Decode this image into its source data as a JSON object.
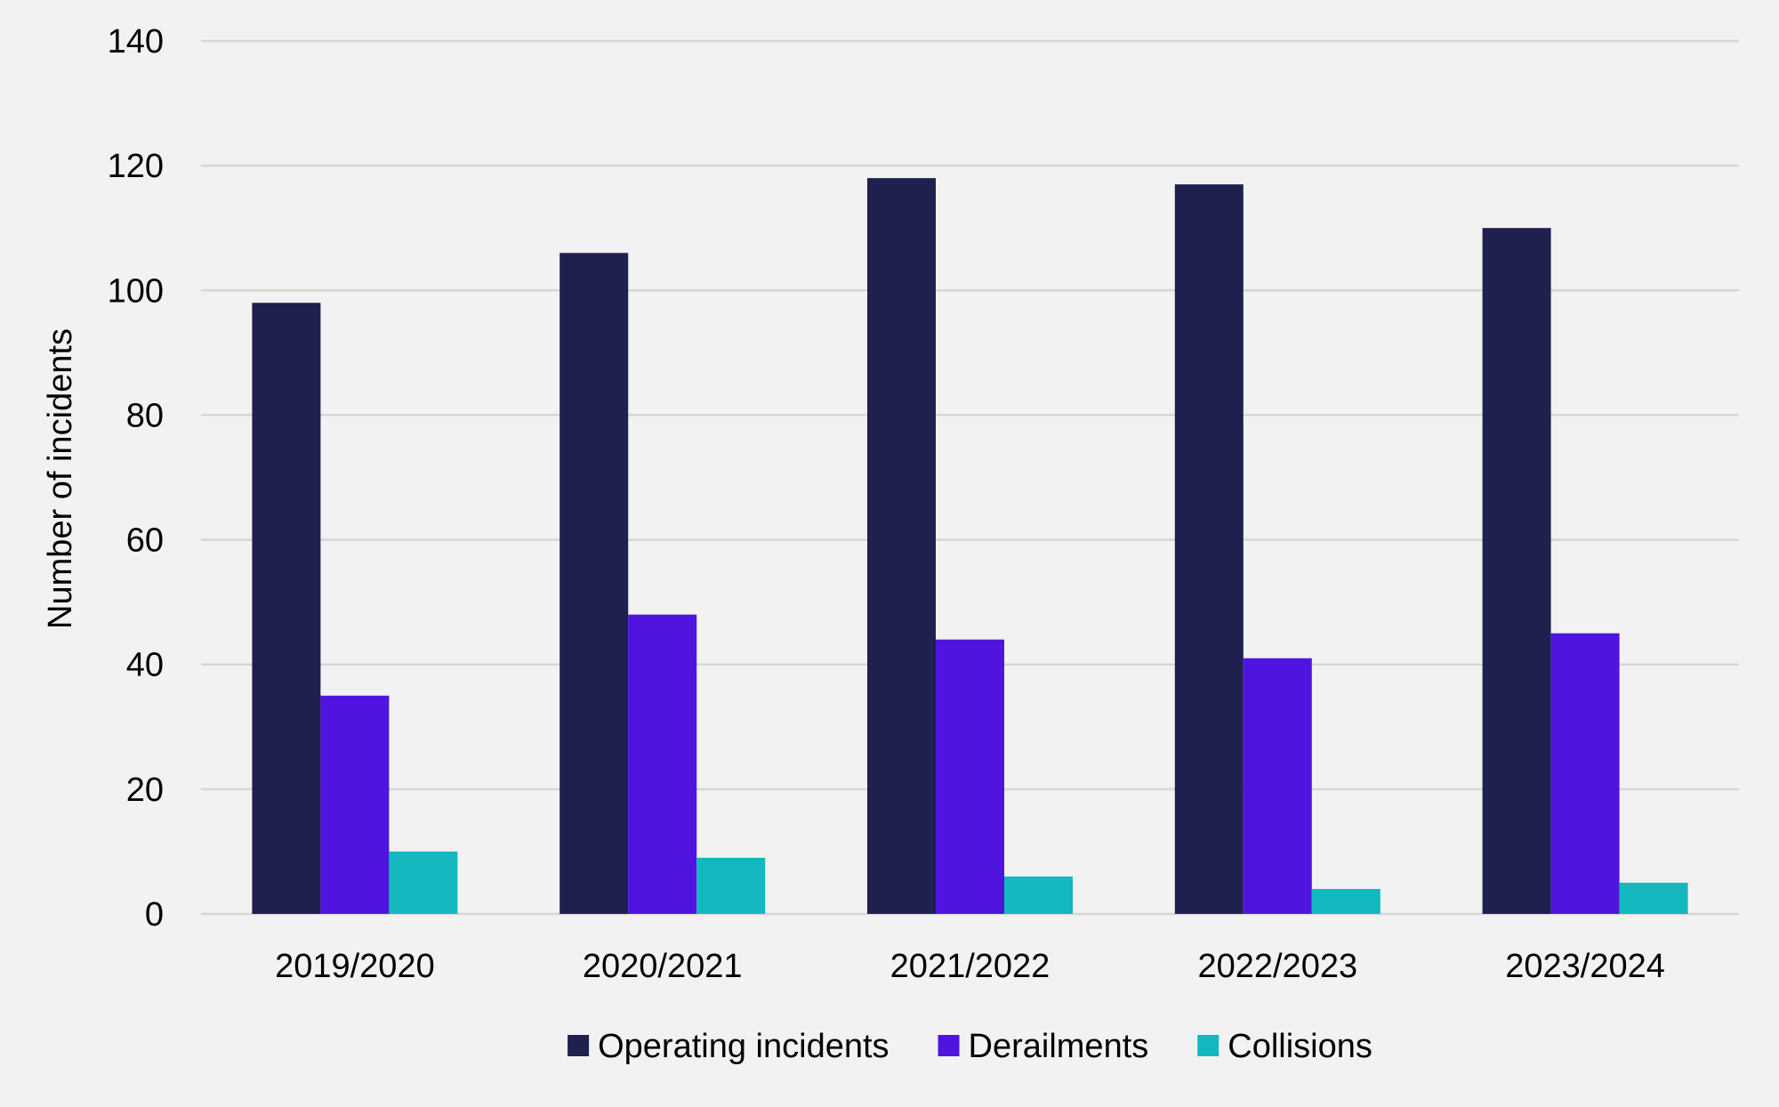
{
  "chart_data": {
    "type": "bar",
    "title": "",
    "xlabel": "",
    "ylabel": "Number of incidents",
    "ylim": [
      0,
      140
    ],
    "yticks": [
      0,
      20,
      40,
      60,
      80,
      100,
      120,
      140
    ],
    "grid": true,
    "legend_position": "bottom",
    "categories": [
      "2019/2020",
      "2020/2021",
      "2021/2022",
      "2022/2023",
      "2023/2024"
    ],
    "series": [
      {
        "name": "Operating incidents",
        "color": "#20204e",
        "values": [
          98,
          106,
          118,
          117,
          110
        ]
      },
      {
        "name": "Derailments",
        "color": "#5014e0",
        "values": [
          35,
          48,
          44,
          41,
          45
        ]
      },
      {
        "name": "Collisions",
        "color": "#13b8bf",
        "values": [
          10,
          9,
          6,
          4,
          5
        ]
      }
    ]
  }
}
